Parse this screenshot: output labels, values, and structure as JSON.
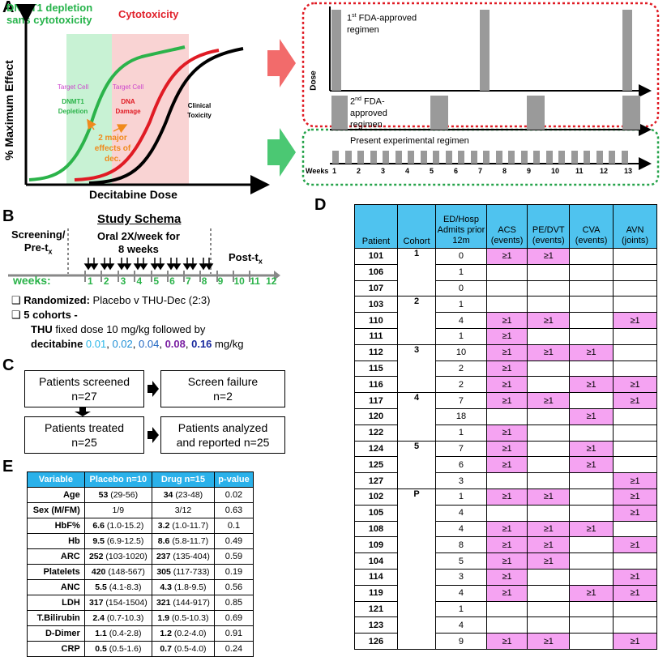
{
  "panels": {
    "a": "A",
    "b": "B",
    "c": "C",
    "d": "D",
    "e": "E"
  },
  "panelA": {
    "band_green": "DNMT1 depletion\nsans cytotoxicity",
    "band_red": "Cytotoxicity",
    "ylabel": "% Maximum Effect",
    "xlabel": "Decitabine Dose",
    "tc1": "Target Cell",
    "tc1b": "DNMT1",
    "tc1c": "Depletion",
    "tc2": "Target Cell",
    "tc2b": "DNA",
    "tc2c": "Damage",
    "ct1": "Clinical",
    "ct2": "Toxicity",
    "effects1": "2 major",
    "effects2": "effects of",
    "effects3": "dec.",
    "dose_label": "Dose",
    "reg1a": "1",
    "reg1sup": "st",
    "reg1b": " FDA-approved",
    "reg1c": "regimen",
    "reg2a": "2",
    "reg2sup": "nd",
    "reg2b": " FDA-",
    "reg2c": "approved",
    "reg2d": "regimen",
    "reg3": "Present experimental regimen",
    "weeks_label": "Weeks",
    "week_ticks": [
      "1",
      "2",
      "3",
      "4",
      "5",
      "6",
      "7",
      "8",
      "9",
      "10",
      "11",
      "12",
      "13"
    ]
  },
  "panelB": {
    "title": "Study Schema",
    "screening1": "Screening/",
    "screening2": "Pre-t",
    "screening_sub": "x",
    "oral1": "Oral 2X/week for",
    "oral2": "8 weeks",
    "post": "Post-t",
    "post_sub": "x",
    "weeks": "weeks:",
    "week_nums": [
      "1",
      "2",
      "3",
      "4",
      "5",
      "6",
      "7",
      "8",
      "9",
      "10",
      "11",
      "12"
    ],
    "b1_bold": "Randomized:",
    "b1_rest": " Placebo v THU-Dec (2:3)",
    "b2": "5 cohorts -",
    "b3_bold": "THU",
    "b3_rest": " fixed dose 10 mg/kg followed by",
    "b4_bold": "decitabine",
    "doses": [
      "0.01",
      "0.02",
      "0.04",
      "0.08",
      "0.16"
    ],
    "dose_colors": [
      "#29b6e8",
      "#1f8fd6",
      "#2066c2",
      "#7a1fa2",
      "#1a2a9e"
    ],
    "unit": " mg/kg"
  },
  "panelC": {
    "screened1": "Patients screened",
    "screened2": "n=27",
    "fail1": "Screen failure",
    "fail2": "n=2",
    "treated1": "Patients treated",
    "treated2": "n=25",
    "analyzed1": "Patients analyzed",
    "analyzed2": "and reported n=25"
  },
  "panelD": {
    "headers": [
      "Patient",
      "Cohort",
      "ED/Hosp Admits prior 12m",
      "ACS (events)",
      "PE/DVT (events)",
      "CVA (events)",
      "AVN (joints)"
    ],
    "rows": [
      [
        "101",
        "1",
        "0",
        "≥1",
        "≥1",
        "",
        ""
      ],
      [
        "106",
        "",
        "1",
        "",
        "",
        "",
        ""
      ],
      [
        "107",
        "",
        "0",
        "",
        "",
        "",
        ""
      ],
      [
        "103",
        "2",
        "1",
        "",
        "",
        "",
        ""
      ],
      [
        "110",
        "",
        "4",
        "≥1",
        "≥1",
        "",
        "≥1"
      ],
      [
        "111",
        "",
        "1",
        "≥1",
        "",
        "",
        ""
      ],
      [
        "112",
        "3",
        "10",
        "≥1",
        "≥1",
        "≥1",
        ""
      ],
      [
        "115",
        "",
        "2",
        "≥1",
        "",
        "",
        ""
      ],
      [
        "116",
        "",
        "2",
        "≥1",
        "",
        "≥1",
        "≥1"
      ],
      [
        "117",
        "4",
        "7",
        "≥1",
        "≥1",
        "",
        "≥1"
      ],
      [
        "120",
        "",
        "18",
        "",
        "",
        "≥1",
        ""
      ],
      [
        "122",
        "",
        "1",
        "≥1",
        "",
        "",
        ""
      ],
      [
        "124",
        "5",
        "7",
        "≥1",
        "",
        "≥1",
        ""
      ],
      [
        "125",
        "",
        "6",
        "≥1",
        "",
        "≥1",
        ""
      ],
      [
        "127",
        "",
        "3",
        "",
        "",
        "",
        "≥1"
      ],
      [
        "102",
        "P",
        "1",
        "≥1",
        "≥1",
        "",
        "≥1"
      ],
      [
        "105",
        "",
        "4",
        "",
        "",
        "",
        "≥1"
      ],
      [
        "108",
        "",
        "4",
        "≥1",
        "≥1",
        "≥1",
        ""
      ],
      [
        "109",
        "",
        "8",
        "≥1",
        "≥1",
        "",
        "≥1"
      ],
      [
        "104",
        "",
        "5",
        "≥1",
        "≥1",
        "",
        ""
      ],
      [
        "114",
        "",
        "3",
        "≥1",
        "",
        "",
        "≥1"
      ],
      [
        "119",
        "",
        "4",
        "≥1",
        "",
        "≥1",
        "≥1"
      ],
      [
        "121",
        "",
        "1",
        "",
        "",
        "",
        ""
      ],
      [
        "123",
        "",
        "4",
        "",
        "",
        "",
        ""
      ],
      [
        "126",
        "",
        "9",
        "≥1",
        "≥1",
        "",
        "≥1"
      ]
    ]
  },
  "panelE": {
    "headers": [
      "Variable",
      "Placebo n=10",
      "Drug n=15",
      "p-value"
    ],
    "rows": [
      [
        "Age",
        "53",
        "(29-56)",
        "34",
        "(23-48)",
        "0.02"
      ],
      [
        "Sex (M/FM)",
        "1/9",
        "",
        "3/12",
        "",
        "0.63"
      ],
      [
        "HbF%",
        "6.6",
        "(1.0-15.2)",
        "3.2",
        "(1.0-11.7)",
        "0.1"
      ],
      [
        "Hb",
        "9.5",
        "(6.9-12.5)",
        "8.6",
        "(5.8-11.7)",
        "0.49"
      ],
      [
        "ARC",
        "252",
        "(103-1020)",
        "237",
        "(135-404)",
        "0.59"
      ],
      [
        "Platelets",
        "420",
        "(148-567)",
        "305",
        "(117-733)",
        "0.19"
      ],
      [
        "ANC",
        "5.5",
        "(4.1-8.3)",
        "4.3",
        "(1.8-9.5)",
        "0.56"
      ],
      [
        "LDH",
        "317",
        "(154-1504)",
        "321",
        "(144-917)",
        "0.85"
      ],
      [
        "T.Bilirubin",
        "2.4",
        "(0.7-10.3)",
        "1.9",
        "(0.5-10.3)",
        "0.69"
      ],
      [
        "D-Dimer",
        "1.1",
        "(0.4-2.8)",
        "1.2",
        "(0.2-4.0)",
        "0.91"
      ],
      [
        "CRP",
        "0.5",
        "(0.5-1.6)",
        "0.7",
        "(0.5-4.0)",
        "0.24"
      ]
    ]
  }
}
